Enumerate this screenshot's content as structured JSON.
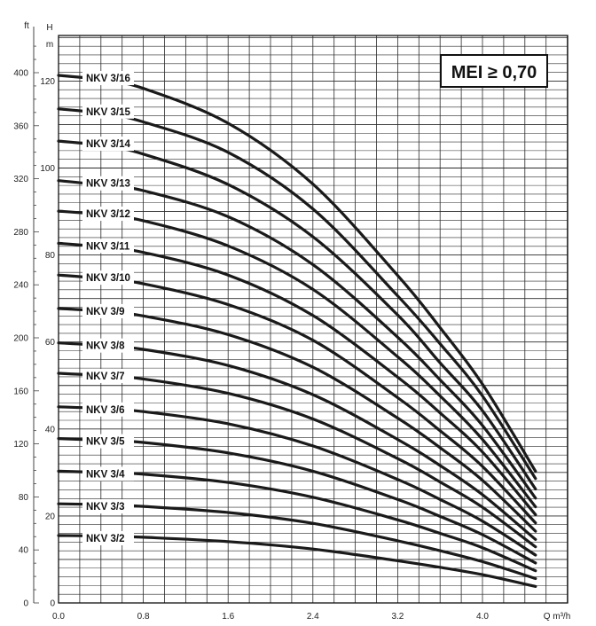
{
  "chart_data": {
    "type": "line",
    "badge": "MEI ≥ 0,70",
    "x_axis": {
      "unit_label": "Q m³/h",
      "min": 0,
      "max": 4.6,
      "ticks": [
        0.0,
        0.8,
        1.6,
        2.4,
        3.2,
        4.0
      ],
      "tick_labels": [
        "0.0",
        "0.8",
        "1.6",
        "2.4",
        "3.2",
        "4.0"
      ]
    },
    "y_axis_m": {
      "unit_labels": [
        "H",
        "m"
      ],
      "min": 0,
      "max": 122,
      "ticks": [
        0,
        20,
        40,
        60,
        80,
        100,
        120
      ],
      "tick_labels": [
        "0",
        "20",
        "40",
        "60",
        "80",
        "100",
        "120"
      ]
    },
    "y_axis_ft": {
      "unit_label": "ft",
      "min": 0,
      "max": 400,
      "ticks": [
        0,
        40,
        80,
        120,
        160,
        200,
        240,
        280,
        320,
        360,
        400
      ],
      "tick_labels": [
        "0",
        "40",
        "80",
        "120",
        "160",
        "200",
        "240",
        "280",
        "320",
        "360",
        "400"
      ]
    },
    "grid": true,
    "series": [
      {
        "name": "NKV 3/16",
        "x": [
          0,
          0.4,
          0.8,
          1.6,
          2.4,
          3.2,
          3.6,
          4.0,
          4.5
        ],
        "y": [
          121.3,
          120.3,
          118.3,
          110.3,
          96.3,
          75.3,
          63.3,
          50.3,
          30.3
        ]
      },
      {
        "name": "NKV 3/15",
        "x": [
          0,
          0.4,
          0.8,
          1.6,
          2.4,
          3.2,
          3.6,
          4.0,
          4.5
        ],
        "y": [
          113.6,
          112.6,
          110.6,
          103.6,
          90.6,
          70.6,
          59.6,
          47.6,
          28.6
        ]
      },
      {
        "name": "NKV 3/14",
        "x": [
          0,
          0.4,
          0.8,
          1.6,
          2.4,
          3.2,
          3.6,
          4.0,
          4.5
        ],
        "y": [
          106.2,
          105.2,
          103.2,
          96.2,
          84.2,
          66.2,
          55.2,
          44.2,
          26.2
        ]
      },
      {
        "name": "NKV 3/13",
        "x": [
          0,
          0.4,
          0.8,
          1.6,
          2.4,
          3.2,
          3.6,
          4.0,
          4.5
        ],
        "y": [
          97.1,
          96.1,
          94.8,
          88.8,
          77.8,
          61.1,
          51.3,
          40.8,
          24.1
        ]
      },
      {
        "name": "NKV 3/12",
        "x": [
          0,
          0.4,
          0.8,
          1.6,
          2.4,
          3.2,
          3.6,
          4.0,
          4.5
        ],
        "y": [
          90.1,
          89.3,
          87.9,
          82.1,
          72.1,
          56.6,
          47.6,
          37.6,
          22.1
        ]
      },
      {
        "name": "NKV 3/11",
        "x": [
          0,
          0.4,
          0.8,
          1.6,
          2.4,
          3.2,
          3.6,
          4.0,
          4.5
        ],
        "y": [
          82.7,
          81.9,
          80.6,
          75.4,
          66.1,
          51.9,
          43.7,
          34.7,
          20.3
        ]
      },
      {
        "name": "NKV 3/10",
        "x": [
          0,
          0.4,
          0.8,
          1.6,
          2.4,
          3.2,
          3.6,
          4.0,
          4.5
        ],
        "y": [
          75.4,
          74.6,
          73.4,
          68.6,
          60.4,
          47.2,
          39.6,
          31.4,
          18.4
        ]
      },
      {
        "name": "NKV 3/9",
        "x": [
          0,
          0.4,
          0.8,
          1.6,
          2.4,
          3.2,
          3.6,
          4.0,
          4.5
        ],
        "y": [
          67.7,
          67.1,
          66.0,
          61.7,
          54.2,
          42.5,
          35.7,
          28.2,
          16.5
        ]
      },
      {
        "name": "NKV 3/8",
        "x": [
          0,
          0.4,
          0.8,
          1.6,
          2.4,
          3.2,
          3.6,
          4.0,
          4.5
        ],
        "y": [
          59.8,
          59.2,
          58.3,
          54.6,
          47.9,
          37.6,
          31.6,
          24.9,
          14.6
        ]
      },
      {
        "name": "NKV 3/7",
        "x": [
          0,
          0.4,
          0.8,
          1.6,
          2.4,
          3.2,
          3.6,
          4.0,
          4.5
        ],
        "y": [
          52.8,
          52.3,
          51.5,
          48.2,
          42.3,
          33.2,
          27.8,
          22.0,
          12.9
        ]
      },
      {
        "name": "NKV 3/6",
        "x": [
          0,
          0.4,
          0.8,
          1.6,
          2.4,
          3.2,
          3.6,
          4.0,
          4.5
        ],
        "y": [
          45.1,
          44.7,
          44.0,
          41.2,
          36.1,
          28.4,
          23.8,
          18.8,
          11.0
        ]
      },
      {
        "name": "NKV 3/5",
        "x": [
          0,
          0.4,
          0.8,
          1.6,
          2.4,
          3.2,
          3.6,
          4.0,
          4.5
        ],
        "y": [
          37.8,
          37.4,
          36.9,
          34.5,
          30.3,
          23.8,
          19.9,
          15.7,
          9.2
        ]
      },
      {
        "name": "NKV 3/4",
        "x": [
          0,
          0.4,
          0.8,
          1.6,
          2.4,
          3.2,
          3.6,
          4.0,
          4.5
        ],
        "y": [
          30.3,
          30.0,
          29.6,
          27.7,
          24.3,
          19.1,
          16.0,
          12.7,
          7.4
        ]
      },
      {
        "name": "NKV 3/3",
        "x": [
          0,
          0.4,
          0.8,
          1.6,
          2.4,
          3.2,
          3.6,
          4.0,
          4.5
        ],
        "y": [
          22.8,
          22.6,
          22.2,
          20.8,
          18.3,
          14.3,
          12.0,
          9.5,
          5.6
        ]
      },
      {
        "name": "NKV 3/2",
        "x": [
          0,
          0.4,
          0.8,
          1.6,
          2.4,
          3.2,
          3.6,
          4.0,
          4.5
        ],
        "y": [
          15.5,
          15.4,
          15.1,
          14.1,
          12.4,
          9.7,
          8.2,
          6.5,
          3.8
        ]
      }
    ]
  }
}
